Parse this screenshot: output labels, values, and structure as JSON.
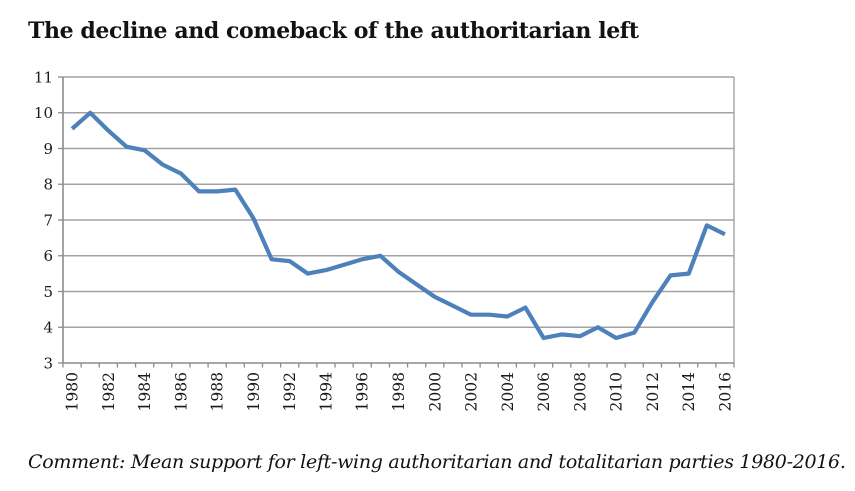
{
  "title": "The decline and comeback of the authoritarian left",
  "comment": "Comment: Mean support for left-wing authoritarian and totalitarian parties 1980-2016.",
  "chart_data": {
    "type": "line",
    "title": "The decline and comeback of the authoritarian left",
    "x": [
      1980,
      1981,
      1982,
      1983,
      1984,
      1985,
      1986,
      1987,
      1988,
      1989,
      1990,
      1991,
      1992,
      1993,
      1994,
      1995,
      1996,
      1997,
      1998,
      1999,
      2000,
      2001,
      2002,
      2003,
      2004,
      2005,
      2006,
      2007,
      2008,
      2009,
      2010,
      2011,
      2012,
      2013,
      2014,
      2015,
      2016
    ],
    "series": [
      {
        "name": "Mean support for left-wing authoritarian and totalitarian parties",
        "values": [
          9.55,
          10.0,
          9.5,
          9.05,
          8.95,
          8.55,
          8.3,
          7.8,
          7.8,
          7.85,
          7.05,
          5.9,
          5.85,
          5.5,
          5.6,
          5.75,
          5.9,
          6.0,
          5.55,
          5.2,
          4.85,
          4.6,
          4.35,
          4.35,
          4.3,
          4.55,
          3.7,
          3.8,
          3.75,
          4.0,
          3.7,
          3.85,
          4.7,
          5.45,
          5.5,
          6.85,
          6.6
        ]
      }
    ],
    "ylim": [
      3,
      11
    ],
    "yticks": [
      3,
      4,
      5,
      6,
      7,
      8,
      9,
      10,
      11
    ],
    "xtick_labels": [
      "1980",
      "1982",
      "1984",
      "1986",
      "1988",
      "1990",
      "1992",
      "1994",
      "1996",
      "1998",
      "2000",
      "2002",
      "2004",
      "2006",
      "2008",
      "2010",
      "2012",
      "2014",
      "2016"
    ],
    "xtick_label_interval": 2,
    "xlabel": "",
    "ylabel": "",
    "grid": true,
    "legend": "none",
    "line_color": "#4e81bb",
    "grid_color": "#a3a3a3",
    "axis_color": "#8c8c8c",
    "text_color": "#1a1a1a"
  }
}
